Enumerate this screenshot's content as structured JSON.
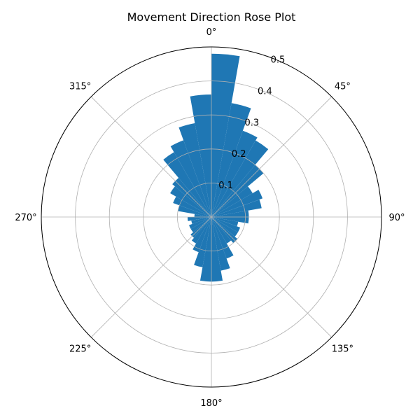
{
  "chart_data": {
    "type": "bar",
    "subtype": "polar-rose",
    "title": "Movement Direction Rose Plot",
    "theta_zero": "north",
    "theta_direction": "clockwise",
    "angle_ticks": [
      "0°",
      "45°",
      "90°",
      "135°",
      "180°",
      "225°",
      "270°",
      "315°"
    ],
    "angle_tick_degrees": [
      0,
      45,
      90,
      135,
      180,
      225,
      270,
      315
    ],
    "radial_ticks": [
      "0.1",
      "0.2",
      "0.3",
      "0.4",
      "0.5"
    ],
    "radial_tick_values": [
      0.1,
      0.2,
      0.3,
      0.4,
      0.5
    ],
    "rlim": [
      0,
      0.5
    ],
    "bin_width_deg": 10,
    "bin_start_deg": [
      0,
      10,
      20,
      30,
      40,
      50,
      60,
      70,
      80,
      90,
      100,
      110,
      120,
      130,
      140,
      150,
      160,
      170,
      180,
      190,
      200,
      210,
      220,
      230,
      240,
      250,
      260,
      270,
      280,
      290,
      300,
      310,
      320,
      330,
      340,
      350
    ],
    "values": [
      0.48,
      0.34,
      0.27,
      0.26,
      0.2,
      0.14,
      0.16,
      0.15,
      0.11,
      0.11,
      0.08,
      0.09,
      0.09,
      0.1,
      0.09,
      0.13,
      0.16,
      0.19,
      0.19,
      0.15,
      0.11,
      0.09,
      0.08,
      0.07,
      0.07,
      0.06,
      0.07,
      0.05,
      0.1,
      0.12,
      0.14,
      0.15,
      0.22,
      0.24,
      0.28,
      0.36
    ],
    "bar_color": "#1f77b4",
    "grid": true
  }
}
